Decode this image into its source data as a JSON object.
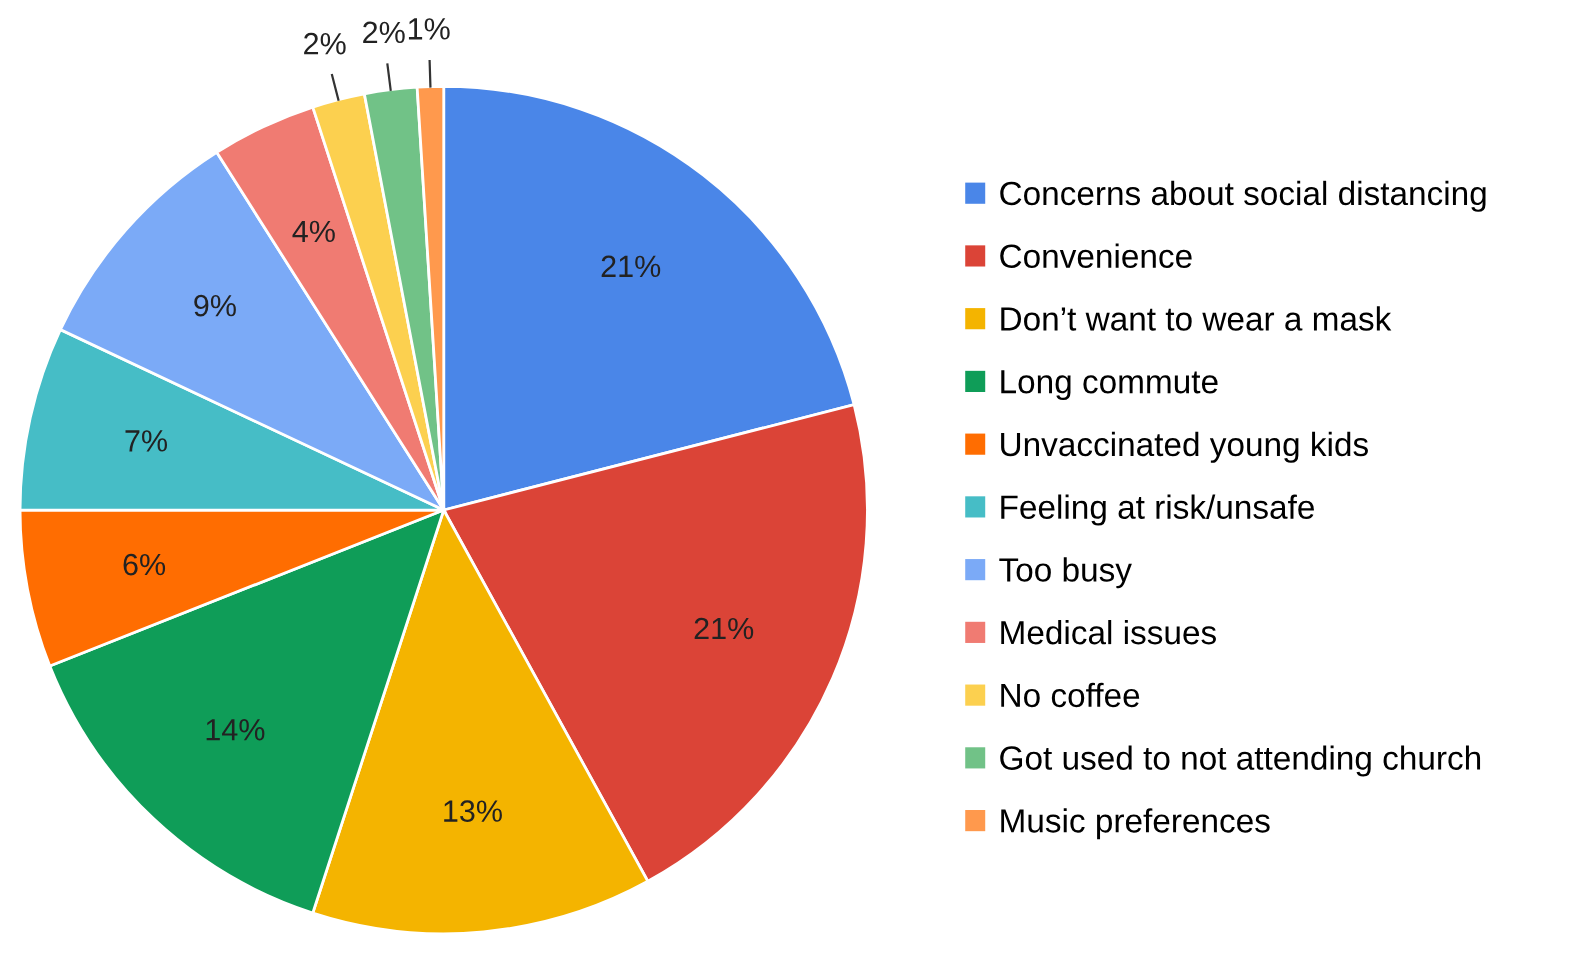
{
  "chart_data": {
    "type": "pie",
    "categories": [
      "Concerns about social distancing",
      "Convenience",
      "Don’t want to wear a mask",
      "Long commute",
      "Unvaccinated young kids",
      "Feeling at risk/unsafe",
      "Too busy",
      "Medical issues",
      "No coffee",
      "Got used to not attending church",
      "Music preferences"
    ],
    "values": [
      21,
      21,
      13,
      14,
      6,
      7,
      9,
      4,
      2,
      2,
      1
    ],
    "colors": [
      "#4a86e8",
      "#db4437",
      "#f4b400",
      "#0f9d58",
      "#ff6d01",
      "#46bdc6",
      "#7baaf7",
      "#f07b72",
      "#fcd04f",
      "#71c287",
      "#ff994d"
    ],
    "value_labels": [
      "21%",
      "21%",
      "13%",
      "14%",
      "6%",
      "7%",
      "9%",
      "4%",
      "2%",
      "2%",
      "1%"
    ],
    "legend": "right"
  }
}
